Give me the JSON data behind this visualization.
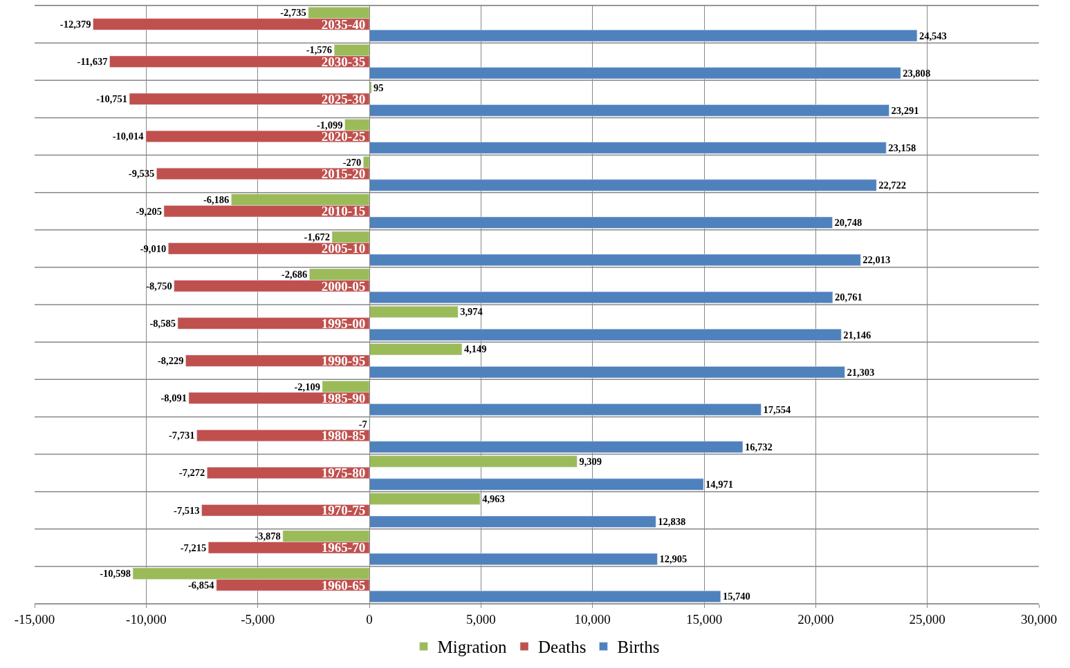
{
  "chart_data": {
    "type": "bar",
    "orientation": "horizontal",
    "categories": [
      "2035-40",
      "2030-35",
      "2025-30",
      "2020-25",
      "2015-20",
      "2010-15",
      "2005-10",
      "2000-05",
      "1995-00",
      "1990-95",
      "1985-90",
      "1980-85",
      "1975-80",
      "1970-75",
      "1965-70",
      "1960-65"
    ],
    "series": [
      {
        "name": "Migration",
        "color": "#9bbb59",
        "values": [
          -2735,
          -1576,
          95,
          -1099,
          -270,
          -6186,
          -1672,
          -2686,
          3974,
          4149,
          -2109,
          -7,
          9309,
          4963,
          -3878,
          -10598
        ],
        "value_labels": [
          "-2,735",
          "-1,576",
          "95",
          "-1,099",
          "-270",
          "-6,186",
          "-1,672",
          "-2,686",
          "3,974",
          "4,149",
          "-2,109",
          "-7",
          "9,309",
          "4,963",
          "-3,878",
          "-10,598"
        ]
      },
      {
        "name": "Deaths",
        "color": "#c0504d",
        "values": [
          -12379,
          -11637,
          -10751,
          -10014,
          -9535,
          -9205,
          -9010,
          -8750,
          -8585,
          -8229,
          -8091,
          -7731,
          -7272,
          -7513,
          -7215,
          -6854
        ],
        "value_labels": [
          "-12,379",
          "-11,637",
          "-10,751",
          "-10,014",
          "-9,535",
          "-9,205",
          "-9,010",
          "-8,750",
          "-8,585",
          "-8,229",
          "-8,091",
          "-7,731",
          "-7,272",
          "-7,513",
          "-7,215",
          "-6,854"
        ]
      },
      {
        "name": "Births",
        "color": "#4f81bd",
        "values": [
          24543,
          23808,
          23291,
          23158,
          22722,
          20748,
          22013,
          20761,
          21146,
          21303,
          17554,
          16732,
          14971,
          12838,
          12905,
          15740
        ],
        "value_labels": [
          "24,543",
          "23,808",
          "23,291",
          "23,158",
          "22,722",
          "20,748",
          "22,013",
          "20,761",
          "21,146",
          "21,303",
          "17,554",
          "16,732",
          "14,971",
          "12,838",
          "12,905",
          "15,740"
        ]
      }
    ],
    "xlim": [
      -15000,
      30000
    ],
    "xticks": [
      {
        "value": -15000,
        "label": "-15,000"
      },
      {
        "value": -10000,
        "label": "-10,000"
      },
      {
        "value": -5000,
        "label": "-5,000"
      },
      0,
      {
        "value": 5000,
        "label": "5,000"
      },
      {
        "value": 10000,
        "label": "10,000"
      },
      {
        "value": 15000,
        "label": "15,000"
      },
      {
        "value": 20000,
        "label": "20,000"
      },
      {
        "value": 25000,
        "label": "25,000"
      },
      {
        "value": 30000,
        "label": "30,000"
      }
    ],
    "grid": true,
    "legend": "bottom"
  }
}
